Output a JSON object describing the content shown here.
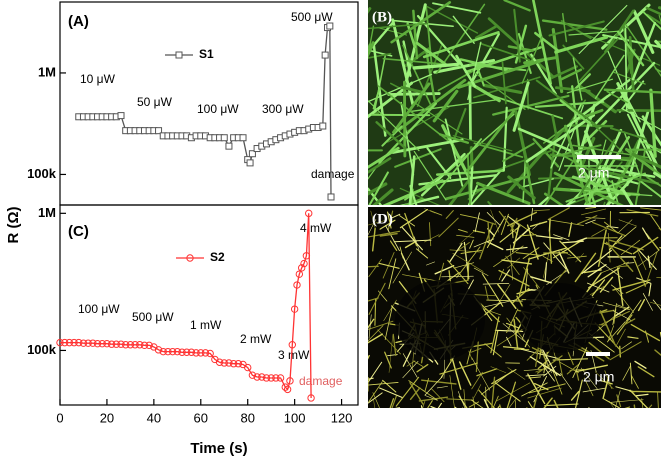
{
  "chart_data": [
    {
      "type": "line",
      "panel_label": "(A)",
      "log_y": true,
      "xlim": [
        0,
        127
      ],
      "ylim": [
        50000,
        5000000
      ],
      "yticks": [
        {
          "value": 100000,
          "label": "100k"
        },
        {
          "value": 1000000,
          "label": "1M"
        }
      ],
      "annotations": [
        "10 μW",
        "50 μW",
        "100 μW",
        "300 μW",
        "500 μW",
        "damage"
      ],
      "series": [
        {
          "name": "S1",
          "color": "#555555",
          "marker": "square",
          "x": [
            8,
            10,
            12,
            14,
            16,
            18,
            20,
            22,
            24,
            26,
            28,
            30,
            32,
            34,
            36,
            38,
            40,
            42,
            44,
            46,
            48,
            50,
            52,
            54,
            56,
            58,
            60,
            62,
            64,
            66,
            68,
            70,
            72,
            74,
            76,
            78,
            80,
            81,
            82,
            84,
            86,
            88,
            90,
            92,
            94,
            96,
            98,
            100,
            102,
            104,
            106,
            108,
            110,
            112,
            113,
            114,
            115,
            115.5
          ],
          "values": [
            370000,
            370000,
            370000,
            370000,
            370000,
            370000,
            370000,
            370000,
            370000,
            380000,
            270000,
            270000,
            270000,
            270000,
            270000,
            270000,
            270000,
            270000,
            240000,
            240000,
            240000,
            240000,
            240000,
            240000,
            230000,
            240000,
            240000,
            240000,
            230000,
            230000,
            230000,
            230000,
            190000,
            230000,
            230000,
            230000,
            140000,
            130000,
            160000,
            180000,
            190000,
            200000,
            210000,
            220000,
            230000,
            240000,
            250000,
            260000,
            270000,
            270000,
            280000,
            290000,
            290000,
            300000,
            1500000,
            2800000,
            2900000,
            60000
          ]
        }
      ]
    },
    {
      "type": "line",
      "panel_label": "(C)",
      "log_y": true,
      "xlabel": "Time (s)",
      "ylabel": "R (Ω)",
      "xlim": [
        0,
        127
      ],
      "ylim": [
        40000,
        1150000
      ],
      "xticks": [
        0,
        20,
        40,
        60,
        80,
        100,
        120
      ],
      "yticks": [
        {
          "value": 100000,
          "label": "100k"
        },
        {
          "value": 1000000,
          "label": "1M"
        }
      ],
      "annotations": [
        "4 mW",
        "100 μW",
        "500 μW",
        "1 mW",
        "2 mW",
        "3 mW",
        "damage"
      ],
      "series": [
        {
          "name": "S2",
          "color": "#ff3333",
          "marker": "circle",
          "x": [
            0,
            2,
            4,
            6,
            8,
            10,
            12,
            14,
            16,
            18,
            20,
            22,
            24,
            26,
            28,
            30,
            32,
            34,
            36,
            38,
            40,
            42,
            44,
            46,
            48,
            50,
            52,
            54,
            56,
            58,
            60,
            62,
            64,
            66,
            68,
            70,
            72,
            74,
            76,
            78,
            80,
            82,
            84,
            86,
            88,
            90,
            92,
            94,
            96,
            97,
            98,
            99,
            100,
            101,
            102,
            103,
            104,
            105,
            106,
            107
          ],
          "values": [
            114000,
            114000,
            114000,
            114000,
            114000,
            113000,
            113000,
            113000,
            112000,
            112000,
            112000,
            111000,
            111000,
            111000,
            110000,
            110000,
            110000,
            110000,
            109000,
            109000,
            106000,
            101000,
            98000,
            98000,
            98000,
            98000,
            97000,
            97000,
            97000,
            96000,
            96000,
            96000,
            95000,
            86000,
            82000,
            81000,
            81000,
            80000,
            80000,
            79000,
            75000,
            66000,
            64000,
            64000,
            63000,
            63000,
            63000,
            63000,
            54000,
            52000,
            60000,
            110000,
            200000,
            300000,
            360000,
            400000,
            430000,
            490000,
            1000000,
            45000
          ]
        }
      ]
    }
  ],
  "images": [
    {
      "label": "(B)",
      "scale_bar": "2 μm"
    },
    {
      "label": "(D)",
      "scale_bar": "2 μm"
    }
  ]
}
